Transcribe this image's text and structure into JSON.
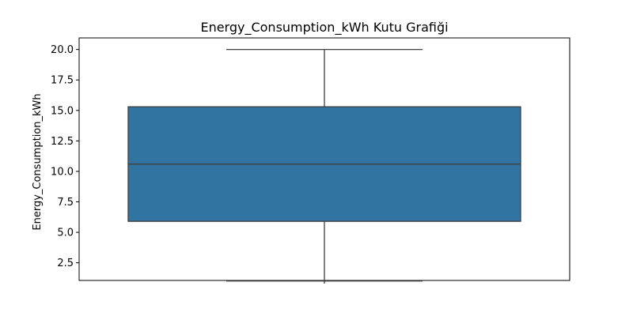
{
  "chart_data": {
    "type": "box",
    "title": "Energy_Consumption_kWh Kutu Grafiği",
    "xlabel": "",
    "ylabel": "Energy_Consumption_kWh",
    "ylim": [
      1.05,
      20.95
    ],
    "yticks": [
      2.5,
      5.0,
      7.5,
      10.0,
      12.5,
      15.0,
      17.5,
      20.0
    ],
    "ytick_labels": [
      "2.5",
      "5.0",
      "7.5",
      "10.0",
      "12.5",
      "15.0",
      "17.5",
      "20.0"
    ],
    "grid": false,
    "box": {
      "whisker_low": 1.0,
      "q1": 5.9,
      "median": 10.6,
      "q3": 15.3,
      "whisker_high": 20.0
    },
    "colors": {
      "box_fill": "#3274a1",
      "line": "#3f3f3f"
    }
  }
}
